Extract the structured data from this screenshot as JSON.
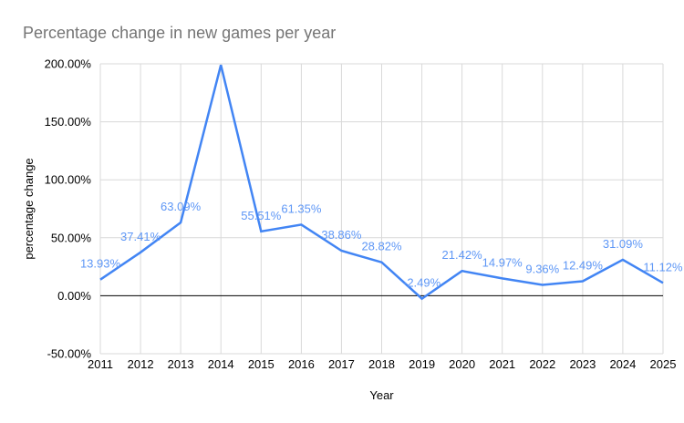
{
  "chart_data": {
    "type": "line",
    "title": "Percentage change in new games per year",
    "xlabel": "Year",
    "ylabel": "percentage change",
    "categories": [
      "2011",
      "2012",
      "2013",
      "2014",
      "2015",
      "2016",
      "2017",
      "2018",
      "2019",
      "2020",
      "2021",
      "2022",
      "2023",
      "2024",
      "2025"
    ],
    "series": [
      {
        "name": "percentage change",
        "values": [
          13.93,
          37.41,
          63.09,
          199.0,
          55.51,
          61.35,
          38.86,
          28.82,
          -2.49,
          21.42,
          14.97,
          9.36,
          12.49,
          31.09,
          11.12
        ],
        "point_labels": [
          "13.93%",
          "37.41%",
          "63.09%",
          "",
          "55.51%",
          "61.35%",
          "38.86%",
          "28.82%",
          "-2.49%",
          "21.42%",
          "14.97%",
          "9.36%",
          "12.49%",
          "31.09%",
          "11.12%"
        ]
      }
    ],
    "ylim": [
      -50,
      200
    ],
    "yticks": [
      {
        "v": -50,
        "label": "-50.00%"
      },
      {
        "v": 0,
        "label": "0.00%"
      },
      {
        "v": 50,
        "label": "50.00%"
      },
      {
        "v": 100,
        "label": "100.00%"
      },
      {
        "v": 150,
        "label": "150.00%"
      },
      {
        "v": 200,
        "label": "200.00%"
      }
    ],
    "grid": true,
    "legend": "none",
    "colors": {
      "line": "#4285f4",
      "data_label": "#5e97f6",
      "grid": "#d9d9d9",
      "zero_line": "#000000",
      "tick_label": "#000000",
      "title": "#757575",
      "background": "#ffffff"
    }
  }
}
